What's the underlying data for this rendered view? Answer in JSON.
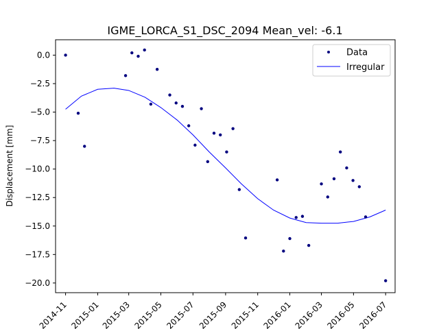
{
  "chart_data": {
    "type": "scatter",
    "title": "IGME_LORCA_S1_DSC_2094    Mean_vel: -6.1",
    "xlabel": "",
    "ylabel": "Displacement [mm]",
    "xlim": [
      "2014-10-13",
      "2016-07-19"
    ],
    "ylim": [
      -20.85,
      1.35
    ],
    "grid": false,
    "legend_position": "top-right",
    "x_ticks": [
      "2014-11",
      "2015-01",
      "2015-03",
      "2015-05",
      "2015-07",
      "2015-09",
      "2015-11",
      "2016-01",
      "2016-03",
      "2016-05",
      "2016-07"
    ],
    "x_tick_labels": [
      "2014-11",
      "2015-01",
      "2015-03",
      "2015-05",
      "2015-07",
      "2015-09",
      "2015-11",
      "2016-01",
      "2016-03",
      "2016-05",
      "2016-07"
    ],
    "y_ticks": [
      0.0,
      -2.5,
      -5.0,
      -7.5,
      -10.0,
      -12.5,
      -15.0,
      -17.5,
      -20.0
    ],
    "y_tick_labels": [
      "0.0",
      "−2.5",
      "−5.0",
      "−7.5",
      "−10.0",
      "−12.5",
      "−15.0",
      "−17.5",
      "−20.0"
    ],
    "series": [
      {
        "name": "Data",
        "kind": "scatter",
        "color": "#00007f",
        "points": [
          {
            "x": "2014-11-01",
            "y": 0.0
          },
          {
            "x": "2014-11-25",
            "y": -5.1
          },
          {
            "x": "2014-12-07",
            "y": -8.0
          },
          {
            "x": "2015-02-23",
            "y": -1.8
          },
          {
            "x": "2015-03-07",
            "y": 0.2
          },
          {
            "x": "2015-03-19",
            "y": -0.1
          },
          {
            "x": "2015-03-31",
            "y": 0.45
          },
          {
            "x": "2015-04-12",
            "y": -4.3
          },
          {
            "x": "2015-04-24",
            "y": -1.25
          },
          {
            "x": "2015-05-18",
            "y": -3.5
          },
          {
            "x": "2015-05-30",
            "y": -4.2
          },
          {
            "x": "2015-06-11",
            "y": -4.5
          },
          {
            "x": "2015-06-23",
            "y": -6.2
          },
          {
            "x": "2015-07-05",
            "y": -7.9
          },
          {
            "x": "2015-07-17",
            "y": -4.7
          },
          {
            "x": "2015-07-29",
            "y": -9.35
          },
          {
            "x": "2015-08-10",
            "y": -6.85
          },
          {
            "x": "2015-08-22",
            "y": -7.0
          },
          {
            "x": "2015-09-03",
            "y": -8.5
          },
          {
            "x": "2015-09-15",
            "y": -6.45
          },
          {
            "x": "2015-09-27",
            "y": -11.8
          },
          {
            "x": "2015-10-09",
            "y": -16.05
          },
          {
            "x": "2015-12-08",
            "y": -10.95
          },
          {
            "x": "2015-12-20",
            "y": -17.2
          },
          {
            "x": "2016-01-01",
            "y": -16.1
          },
          {
            "x": "2016-01-13",
            "y": -14.25
          },
          {
            "x": "2016-01-25",
            "y": -14.15
          },
          {
            "x": "2016-02-06",
            "y": -16.7
          },
          {
            "x": "2016-02-30",
            "y": -11.3
          },
          {
            "x": "2016-03-13",
            "y": -12.45
          },
          {
            "x": "2016-03-25",
            "y": -10.85
          },
          {
            "x": "2016-04-06",
            "y": -8.5
          },
          {
            "x": "2016-04-18",
            "y": -9.9
          },
          {
            "x": "2016-04-30",
            "y": -11.0
          },
          {
            "x": "2016-05-12",
            "y": -11.55
          },
          {
            "x": "2016-05-24",
            "y": -14.2
          },
          {
            "x": "2016-07-01",
            "y": -19.8
          }
        ]
      },
      {
        "name": "Irregular",
        "kind": "line",
        "color": "#0000ff",
        "points": [
          {
            "x": "2014-11-01",
            "y": -4.75
          },
          {
            "x": "2014-12-01",
            "y": -3.6
          },
          {
            "x": "2015-01-01",
            "y": -3.0
          },
          {
            "x": "2015-02-01",
            "y": -2.9
          },
          {
            "x": "2015-03-01",
            "y": -3.1
          },
          {
            "x": "2015-04-01",
            "y": -3.7
          },
          {
            "x": "2015-05-01",
            "y": -4.6
          },
          {
            "x": "2015-06-01",
            "y": -5.7
          },
          {
            "x": "2015-07-01",
            "y": -7.0
          },
          {
            "x": "2015-08-01",
            "y": -8.5
          },
          {
            "x": "2015-09-01",
            "y": -9.9
          },
          {
            "x": "2015-10-01",
            "y": -11.3
          },
          {
            "x": "2015-11-01",
            "y": -12.6
          },
          {
            "x": "2015-12-01",
            "y": -13.6
          },
          {
            "x": "2016-01-01",
            "y": -14.3
          },
          {
            "x": "2016-02-01",
            "y": -14.7
          },
          {
            "x": "2016-03-01",
            "y": -14.75
          },
          {
            "x": "2016-04-01",
            "y": -14.75
          },
          {
            "x": "2016-05-01",
            "y": -14.6
          },
          {
            "x": "2016-06-01",
            "y": -14.2
          },
          {
            "x": "2016-07-01",
            "y": -13.6
          }
        ]
      }
    ]
  }
}
